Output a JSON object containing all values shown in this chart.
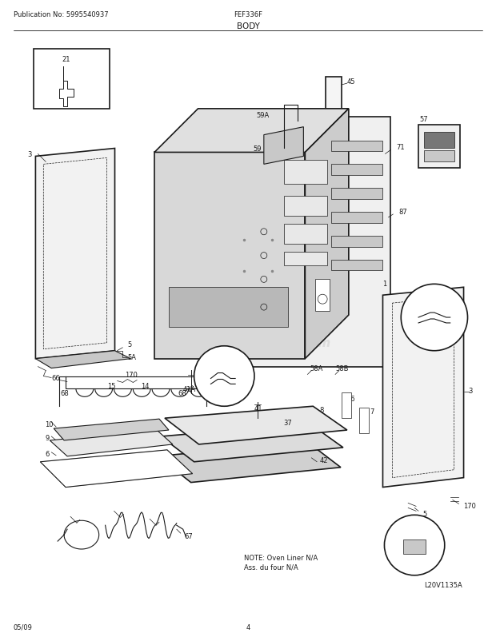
{
  "title": "BODY",
  "pub_no": "Publication No: 5995540937",
  "model": "FEF336F",
  "date": "05/09",
  "page": "4",
  "logo_watermark": "eReplacementParts.com",
  "image_id": "L20V1135A",
  "note_line1": "NOTE: Oven Liner N/A",
  "note_line2": "Ass. du four N/A",
  "bg_color": "#ffffff",
  "line_color": "#1a1a1a",
  "gray_light": "#e0e0e0",
  "gray_med": "#c8c8c8",
  "gray_dark": "#b0b0b0"
}
